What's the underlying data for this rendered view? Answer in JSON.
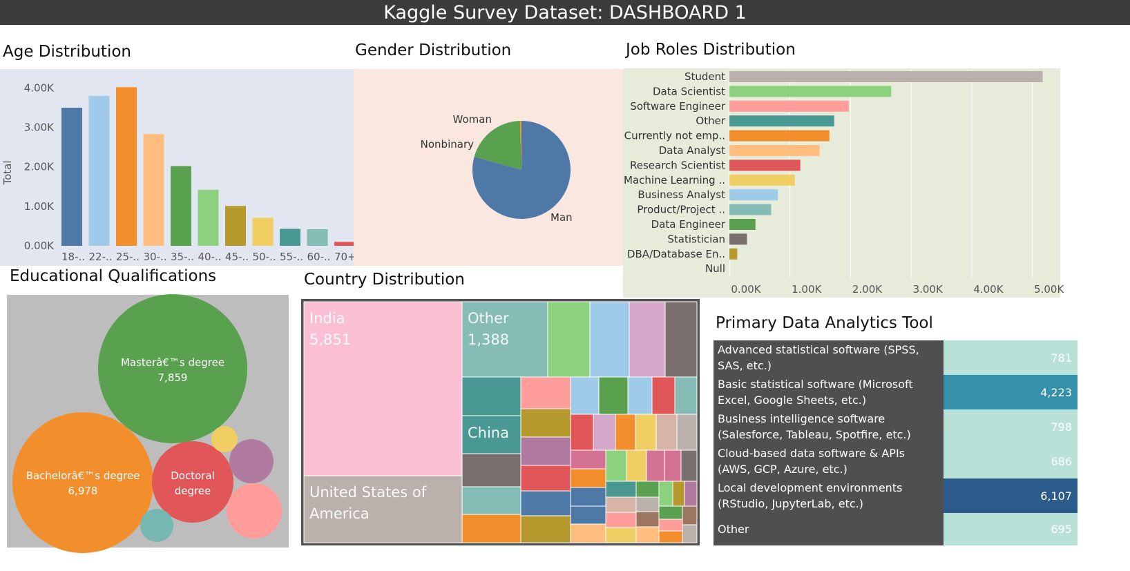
{
  "title": "Kaggle Survey Dataset: DASHBOARD 1",
  "panels": {
    "age": "Age Distribution",
    "gender": "Gender Distribution",
    "jobs": "Job Roles Distribution",
    "education": "Educational Qualifications",
    "country": "Country Distribution",
    "tools": "Primary Data Analytics Tool"
  },
  "colors": {
    "tableau": [
      "#4e79a7",
      "#a0cbe8",
      "#f28e2b",
      "#ffbe7d",
      "#59a14f",
      "#8cd17d",
      "#b6992d",
      "#f1ce63",
      "#499894",
      "#86bcb6",
      "#e15759",
      "#ff9d9a",
      "#79706e",
      "#bab0ac",
      "#d37295",
      "#fabfd2",
      "#b07aa1",
      "#d4a6c8",
      "#9d7660",
      "#d7b5a6"
    ]
  },
  "chart_data": [
    {
      "type": "bar",
      "id": "age",
      "categories": [
        "18-..",
        "22-..",
        "25-..",
        "30-..",
        "35-..",
        "40-..",
        "45-..",
        "50-..",
        "55-..",
        "60-..",
        "70+"
      ],
      "values": [
        3500,
        3800,
        4020,
        2830,
        2020,
        1420,
        1010,
        710,
        430,
        420,
        100
      ],
      "ylabel": "Total",
      "yticks": [
        "0.00K",
        "1.00K",
        "2.00K",
        "3.00K",
        "4.00K"
      ],
      "ylim": [
        0,
        4200
      ],
      "colors": [
        "#4e79a7",
        "#a0cbe8",
        "#f28e2b",
        "#ffbe7d",
        "#59a14f",
        "#8cd17d",
        "#b6992d",
        "#f1ce63",
        "#499894",
        "#86bcb6",
        "#e15759"
      ]
    },
    {
      "type": "pie",
      "id": "gender",
      "labels": [
        "Man",
        "Woman",
        "Nonbinary"
      ],
      "values": [
        79.3,
        20.2,
        0.5
      ],
      "colors": [
        "#4e79a7",
        "#59a14f",
        "#f28e2b"
      ]
    },
    {
      "type": "bar",
      "id": "jobs",
      "orientation": "horizontal",
      "categories": [
        "Student",
        "Data Scientist",
        "Software Engineer",
        "Other",
        "Currently not emp..",
        "Data Analyst",
        "Research Scientist",
        "Machine Learning ..",
        "Business Analyst",
        "Product/Project ..",
        "Data Engineer",
        "Statistician",
        "DBA/Database En..",
        "Null"
      ],
      "values": [
        5170,
        2670,
        1970,
        1730,
        1650,
        1490,
        1170,
        1080,
        800,
        690,
        430,
        290,
        130,
        0
      ],
      "xticks": [
        "0.00K",
        "1.00K",
        "2.00K",
        "3.00K",
        "4.00K",
        "5.00K"
      ],
      "xlim": [
        0,
        5300
      ],
      "colors": [
        "#bab0ac",
        "#8cd17d",
        "#ff9d9a",
        "#499894",
        "#f28e2b",
        "#ffbe7d",
        "#e15759",
        "#f1ce63",
        "#a0cbe8",
        "#86bcb6",
        "#59a14f",
        "#79706e",
        "#b6992d",
        "#ffffff"
      ]
    },
    {
      "type": "bubble",
      "id": "education",
      "bubbles": [
        {
          "label": "Masterâ€™s degree",
          "value": "7,859",
          "color": "#59a14f"
        },
        {
          "label": "Bachelorâ€™s degree",
          "value": "6,978",
          "color": "#f28e2b"
        },
        {
          "label": "Doctoral degree",
          "value": "",
          "color": "#e15759"
        },
        {
          "label": "",
          "value": "",
          "color": "#b07aa1"
        },
        {
          "label": "",
          "value": "",
          "color": "#ff9d9a"
        },
        {
          "label": "",
          "value": "",
          "color": "#f1ce63"
        },
        {
          "label": "",
          "value": "",
          "color": "#76b7b2"
        }
      ]
    },
    {
      "type": "treemap",
      "id": "country",
      "labelled": [
        {
          "label": "India",
          "value": "5,851"
        },
        {
          "label": "Other",
          "value": "1,388"
        },
        {
          "label": "China",
          "value": ""
        },
        {
          "label": "United States of America",
          "value": ""
        }
      ]
    },
    {
      "type": "table",
      "id": "tools",
      "rows": [
        {
          "label": "Advanced statistical software (SPSS, SAS, etc.)",
          "value": "781",
          "color": "#b8e2d7"
        },
        {
          "label": "Basic statistical software (Microsoft Excel, Google Sheets, etc.)",
          "value": "4,223",
          "color": "#3590a9"
        },
        {
          "label": "Business intelligence software (Salesforce, Tableau, Spotfire, etc.)",
          "value": "798",
          "color": "#b8e2d7"
        },
        {
          "label": "Cloud-based data software & APIs (AWS, GCP, Azure, etc.)",
          "value": "686",
          "color": "#b8e2d7"
        },
        {
          "label": "Local development environments (RStudio, JupyterLab, etc.)",
          "value": "6,107",
          "color": "#2b5b8a"
        },
        {
          "label": "Other",
          "value": "695",
          "color": "#b8e2d7"
        }
      ]
    }
  ]
}
